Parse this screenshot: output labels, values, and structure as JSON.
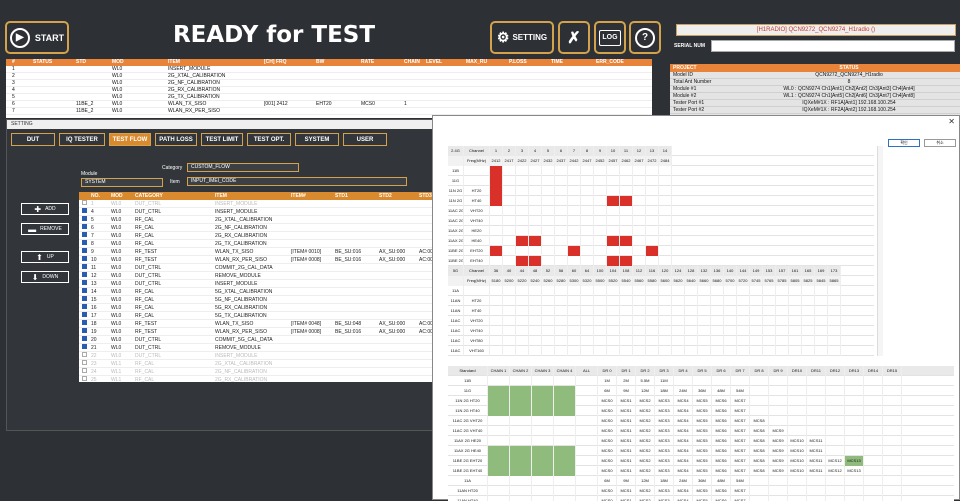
{
  "topbar": {
    "start_label": "START",
    "title": "READY for TEST",
    "setting_label": "SETTING",
    "log_label": "LOG",
    "help_symbol": "?"
  },
  "right_panel": {
    "radio": "[H1RADIO] QCN9272_QCN9274_H1radio ()",
    "serial_label": "SERIAL NUM",
    "project_headers": [
      "PROJECT",
      "STATUS"
    ],
    "project_rows": [
      [
        "Model ID",
        "QCN9272_QCN9274_H1radio"
      ],
      [
        "Total Ant Number",
        "8"
      ],
      [
        "Module #1",
        "WL0 : QCN9274 Ch1[Ant1] Ch2[Ant2] Ch3[Ant3] Ch4[Ant4]"
      ],
      [
        "Module #2",
        "WL1 : QCN9274 Ch1[Ant5] Ch2[Ant6] Ch3[Ant7] Ch4[Ant8]"
      ],
      [
        "Tester Port #1",
        "IQXeM#1X : RF1A[Ant1] 192.168.100.254"
      ],
      [
        "Tester Port #2",
        "IQXeM#1X : RF2A[Ant2] 192.168.100.254"
      ]
    ]
  },
  "main_table": {
    "headers": [
      "#",
      "STATUS",
      "STD",
      "MOD",
      "ITEM",
      "[CH] FRQ",
      "BW",
      "RATE",
      "CHAIN",
      "LEVEL",
      "MAX_RU",
      "P.LOSS",
      "TIME",
      "ERR_CODE"
    ],
    "rows": [
      [
        "1",
        "",
        "",
        "WL0",
        "INSERT_MODULE",
        "",
        "",
        "",
        "",
        "",
        "",
        "",
        "",
        ""
      ],
      [
        "2",
        "",
        "",
        "WL0",
        "2G_XTAL_CALIBRATION",
        "",
        "",
        "",
        "",
        "",
        "",
        "",
        "",
        ""
      ],
      [
        "3",
        "",
        "",
        "WL0",
        "2G_NF_CALIBRATION",
        "",
        "",
        "",
        "",
        "",
        "",
        "",
        "",
        ""
      ],
      [
        "4",
        "",
        "",
        "WL0",
        "2G_RX_CALIBRATION",
        "",
        "",
        "",
        "",
        "",
        "",
        "",
        "",
        ""
      ],
      [
        "5",
        "",
        "",
        "WL0",
        "2G_TX_CALIBRATION",
        "",
        "",
        "",
        "",
        "",
        "",
        "",
        "",
        ""
      ],
      [
        "6",
        "",
        "11BE_2",
        "WL0",
        "WLAN_TX_SISO",
        "[001] 2412",
        "EHT20",
        "MCS0",
        "1",
        "",
        "",
        "",
        "",
        ""
      ],
      [
        "7",
        "",
        "11BE_2",
        "WL0",
        "WLAN_RX_PER_SISO",
        "",
        "",
        "",
        "",
        "",
        "",
        "",
        "",
        ""
      ]
    ]
  },
  "setting_dialog": {
    "title": "SETTING",
    "tabs": [
      "DUT",
      "IQ TESTER",
      "TEST FLOW",
      "PATH LOSS",
      "TEST LIMIT",
      "TEST OPT.",
      "SYSTEM",
      "USER"
    ],
    "module_label": "Module",
    "module_value": "SYSTEM",
    "category_label": "Category",
    "category_value": "CUSTOM_FLOW",
    "item_label": "Item",
    "item_value": "INPUT_IMEI_CODE",
    "buttons": {
      "add": "ADD",
      "remove": "REMOVE",
      "up": "UP",
      "down": "DOWN"
    },
    "grid_headers": [
      "NO.",
      "MOD",
      "CATEGORY",
      "ITEM",
      "ITEM#",
      "STD1",
      "STD2",
      "STD3"
    ],
    "rows": [
      {
        "no": "1",
        "mod": "WL0",
        "cat": "DUT_CTRL",
        "item": "INSERT_MODULE",
        "num": "",
        "s1": "",
        "s2": "",
        "s3": "",
        "on": false
      },
      {
        "no": "4",
        "mod": "WL0",
        "cat": "DUT_CTRL",
        "item": "INSERT_MODULE",
        "num": "",
        "s1": "",
        "s2": "",
        "s3": "",
        "on": true
      },
      {
        "no": "5",
        "mod": "WL0",
        "cat": "RF_CAL",
        "item": "2G_XTAL_CALIBRATION",
        "num": "",
        "s1": "",
        "s2": "",
        "s3": "",
        "on": true
      },
      {
        "no": "6",
        "mod": "WL0",
        "cat": "RF_CAL",
        "item": "2G_NF_CALIBRATION",
        "num": "",
        "s1": "",
        "s2": "",
        "s3": "",
        "on": true
      },
      {
        "no": "7",
        "mod": "WL0",
        "cat": "RF_CAL",
        "item": "2G_RX_CALIBRATION",
        "num": "",
        "s1": "",
        "s2": "",
        "s3": "",
        "on": true
      },
      {
        "no": "8",
        "mod": "WL0",
        "cat": "RF_CAL",
        "item": "2G_TX_CALIBRATION",
        "num": "",
        "s1": "",
        "s2": "",
        "s3": "",
        "on": true
      },
      {
        "no": "9",
        "mod": "WL0",
        "cat": "RF_TEST",
        "item": "WLAN_TX_SISO",
        "num": "[ITEM# 0010]",
        "s1": "BE_SU:016",
        "s2": "AX_SU:000",
        "s3": "AC:000,N:",
        "on": true
      },
      {
        "no": "10",
        "mod": "WL0",
        "cat": "RF_TEST",
        "item": "WLAN_RX_PER_SISO",
        "num": "[ITEM# 0008]",
        "s1": "BE_SU:016",
        "s2": "AX_SU:000",
        "s3": "AC:000,N:",
        "on": true
      },
      {
        "no": "11",
        "mod": "WL0",
        "cat": "DUT_CTRL",
        "item": "COMMIT_2G_CAL_DATA",
        "num": "",
        "s1": "",
        "s2": "",
        "s3": "",
        "on": true
      },
      {
        "no": "12",
        "mod": "WL0",
        "cat": "DUT_CTRL",
        "item": "REMOVE_MODULE",
        "num": "",
        "s1": "",
        "s2": "",
        "s3": "",
        "on": true
      },
      {
        "no": "13",
        "mod": "WL0",
        "cat": "DUT_CTRL",
        "item": "INSERT_MODULE",
        "num": "",
        "s1": "",
        "s2": "",
        "s3": "",
        "on": true
      },
      {
        "no": "14",
        "mod": "WL0",
        "cat": "RF_CAL",
        "item": "5G_XTAL_CALIBRATION",
        "num": "",
        "s1": "",
        "s2": "",
        "s3": "",
        "on": true
      },
      {
        "no": "15",
        "mod": "WL0",
        "cat": "RF_CAL",
        "item": "5G_NF_CALIBRATION",
        "num": "",
        "s1": "",
        "s2": "",
        "s3": "",
        "on": true
      },
      {
        "no": "16",
        "mod": "WL0",
        "cat": "RF_CAL",
        "item": "5G_RX_CALIBRATION",
        "num": "",
        "s1": "",
        "s2": "",
        "s3": "",
        "on": true
      },
      {
        "no": "17",
        "mod": "WL0",
        "cat": "RF_CAL",
        "item": "5G_TX_CALIBRATION",
        "num": "",
        "s1": "",
        "s2": "",
        "s3": "",
        "on": true
      },
      {
        "no": "18",
        "mod": "WL0",
        "cat": "RF_TEST",
        "item": "WLAN_TX_SISO",
        "num": "[ITEM# 0048]",
        "s1": "BE_SU:048",
        "s2": "AX_SU:000",
        "s3": "AC:000,N:",
        "on": true
      },
      {
        "no": "19",
        "mod": "WL0",
        "cat": "RF_TEST",
        "item": "WLAN_RX_PER_SISO",
        "num": "[ITEM# 0008]",
        "s1": "BE_SU:016",
        "s2": "AX_SU:000",
        "s3": "AC:000,N:",
        "on": true
      },
      {
        "no": "20",
        "mod": "WL0",
        "cat": "DUT_CTRL",
        "item": "COMMIT_5G_CAL_DATA",
        "num": "",
        "s1": "",
        "s2": "",
        "s3": "",
        "on": true
      },
      {
        "no": "21",
        "mod": "WL0",
        "cat": "DUT_CTRL",
        "item": "REMOVE_MODULE",
        "num": "",
        "s1": "",
        "s2": "",
        "s3": "",
        "on": true
      },
      {
        "no": "22",
        "mod": "WL0",
        "cat": "DUT_CTRL",
        "item": "INSERT_MODULE",
        "num": "",
        "s1": "",
        "s2": "",
        "s3": "",
        "on": false
      },
      {
        "no": "23",
        "mod": "WL1",
        "cat": "RF_CAL",
        "item": "2G_XTAL_CALIBRATION",
        "num": "",
        "s1": "",
        "s2": "",
        "s3": "",
        "on": false
      },
      {
        "no": "24",
        "mod": "WL1",
        "cat": "RF_CAL",
        "item": "2G_NF_CALIBRATION",
        "num": "",
        "s1": "",
        "s2": "",
        "s3": "",
        "on": false
      },
      {
        "no": "25",
        "mod": "WL1",
        "cat": "RF_CAL",
        "item": "2G_RX_CALIBRATION",
        "num": "",
        "s1": "",
        "s2": "",
        "s3": "",
        "on": false
      }
    ]
  },
  "channel_dialog": {
    "ok_label": "확인",
    "cancel_label": "취소",
    "channel_table": {
      "header_2g": [
        "2.4G",
        "Channel",
        "1",
        "2",
        "3",
        "4",
        "5",
        "6",
        "7",
        "8",
        "9",
        "10",
        "11",
        "12",
        "13",
        "14"
      ],
      "freq_2g": [
        "",
        "Freq(MHz)",
        "2412",
        "2417",
        "2422",
        "2427",
        "2432",
        "2437",
        "2442",
        "2447",
        "2452",
        "2457",
        "2462",
        "2467",
        "2472",
        "2484"
      ],
      "rows_2g": [
        {
          "std": "11B",
          "bw": "",
          "red": [
            1
          ]
        },
        {
          "std": "11G",
          "bw": "",
          "red": [
            1
          ]
        },
        {
          "std": "11N 2G",
          "bw": "HT20",
          "red": [
            1
          ]
        },
        {
          "std": "11N 2G",
          "bw": "HT40",
          "red": [
            1,
            10,
            11
          ]
        },
        {
          "std": "11AC 2G",
          "bw": "VHT20",
          "red": []
        },
        {
          "std": "11AC 2G",
          "bw": "VHT40",
          "red": []
        },
        {
          "std": "11AX 2G",
          "bw": "HE20",
          "red": []
        },
        {
          "std": "11AX 2G",
          "bw": "HE40",
          "red": [
            3,
            4,
            10,
            11
          ]
        },
        {
          "std": "11BE 2G",
          "bw": "EHT20",
          "red": [
            1,
            7,
            13
          ]
        },
        {
          "std": "11BE 2G",
          "bw": "EHT40",
          "red": [
            3,
            4,
            10,
            11
          ]
        }
      ],
      "header_5g": [
        "5G",
        "Channel",
        "36",
        "40",
        "44",
        "48",
        "52",
        "56",
        "60",
        "64",
        "100",
        "104",
        "108",
        "112",
        "116",
        "120",
        "124",
        "128",
        "132",
        "136",
        "140",
        "144",
        "149",
        "153",
        "157",
        "161",
        "165",
        "169",
        "173"
      ],
      "freq_5g": [
        "",
        "Freq(MHz)",
        "5180",
        "5200",
        "5220",
        "5240",
        "5260",
        "5280",
        "5300",
        "5320",
        "5500",
        "5520",
        "5540",
        "5560",
        "5580",
        "5600",
        "5620",
        "5640",
        "5660",
        "5680",
        "5700",
        "5720",
        "5745",
        "5765",
        "5785",
        "5805",
        "5825",
        "5845",
        "5865"
      ],
      "rows_5g": [
        {
          "std": "11A",
          "bw": ""
        },
        {
          "std": "11AN",
          "bw": "HT20"
        },
        {
          "std": "11AN",
          "bw": "HT40"
        },
        {
          "std": "11AC",
          "bw": "VHT20"
        },
        {
          "std": "11AC",
          "bw": "VHT40"
        },
        {
          "std": "11AC",
          "bw": "VHT80"
        },
        {
          "std": "11AC",
          "bw": "VHT160"
        }
      ]
    },
    "rate_table": {
      "headers": [
        "Standard",
        "CHAIN 1",
        "CHAIN 2",
        "CHAIN 3",
        "CHAIN 4",
        "ALL",
        "DR 0",
        "DR 1",
        "DR 2",
        "DR 3",
        "DR 4",
        "DR 5",
        "DR 6",
        "DR 7",
        "DR 8",
        "DR 9",
        "DR10",
        "DR11",
        "DR12",
        "DR13",
        "DR14",
        "DR15"
      ],
      "rows": [
        {
          "std": "11B",
          "green": false,
          "dr": [
            "1M",
            "2M",
            "5.5M",
            "11M"
          ]
        },
        {
          "std": "11G",
          "green": true,
          "dr": [
            "6M",
            "9M",
            "12M",
            "18M",
            "24M",
            "36M",
            "48M",
            "54M"
          ]
        },
        {
          "std": "11N 2G HT20",
          "green": true,
          "dr": [
            "MCS0",
            "MCS1",
            "MCS2",
            "MCS3",
            "MCS4",
            "MCS5",
            "MCS6",
            "MCS7"
          ]
        },
        {
          "std": "11N 2G HT40",
          "green": true,
          "dr": [
            "MCS0",
            "MCS1",
            "MCS2",
            "MCS3",
            "MCS4",
            "MCS5",
            "MCS6",
            "MCS7"
          ]
        },
        {
          "std": "11AC 2G VHT20",
          "green": false,
          "dr": [
            "MCS0",
            "MCS1",
            "MCS2",
            "MCS3",
            "MCS4",
            "MCS5",
            "MCS6",
            "MCS7",
            "MCS8"
          ]
        },
        {
          "std": "11AC 2G VHT40",
          "green": false,
          "dr": [
            "MCS0",
            "MCS1",
            "MCS2",
            "MCS3",
            "MCS4",
            "MCS5",
            "MCS6",
            "MCS7",
            "MCS8",
            "MCS9"
          ]
        },
        {
          "std": "11AX 2G HE20",
          "green": false,
          "dr": [
            "MCS0",
            "MCS1",
            "MCS2",
            "MCS3",
            "MCS4",
            "MCS5",
            "MCS6",
            "MCS7",
            "MCS8",
            "MCS9",
            "MCS10",
            "MCS11"
          ]
        },
        {
          "std": "11AX 2G HE40",
          "green": true,
          "dr": [
            "MCS0",
            "MCS1",
            "MCS2",
            "MCS3",
            "MCS4",
            "MCS5",
            "MCS6",
            "MCS7",
            "MCS8",
            "MCS9",
            "MCS10",
            "MCS11"
          ]
        },
        {
          "std": "11BE 2G EHT20",
          "green": true,
          "dr": [
            "MCS0",
            "MCS1",
            "MCS2",
            "MCS3",
            "MCS4",
            "MCS5",
            "MCS6",
            "MCS7",
            "MCS8",
            "MCS9",
            "MCS10",
            "MCS11",
            "MCS12",
            "MCS13"
          ]
        },
        {
          "std": "11BE 2G EHT40",
          "green": true,
          "dr": [
            "MCS0",
            "MCS1",
            "MCS2",
            "MCS3",
            "MCS4",
            "MCS5",
            "MCS6",
            "MCS7",
            "MCS8",
            "MCS9",
            "MCS10",
            "MCS11",
            "MCS12",
            "MCS13"
          ]
        },
        {
          "std": "11A",
          "green": false,
          "dr": [
            "6M",
            "9M",
            "12M",
            "18M",
            "24M",
            "36M",
            "48M",
            "54M"
          ]
        },
        {
          "std": "11AN HT20",
          "green": false,
          "dr": [
            "MCS0",
            "MCS1",
            "MCS2",
            "MCS3",
            "MCS4",
            "MCS5",
            "MCS6",
            "MCS7"
          ]
        },
        {
          "std": "11AN HT40",
          "green": false,
          "dr": [
            "MCS0",
            "MCS1",
            "MCS2",
            "MCS3",
            "MCS4",
            "MCS5",
            "MCS6",
            "MCS7"
          ]
        }
      ]
    }
  },
  "colors": {
    "accent": "#e8843a",
    "gold": "#d4a24a",
    "red_cell": "#d9302a",
    "green_cell": "#8fbb7d"
  }
}
